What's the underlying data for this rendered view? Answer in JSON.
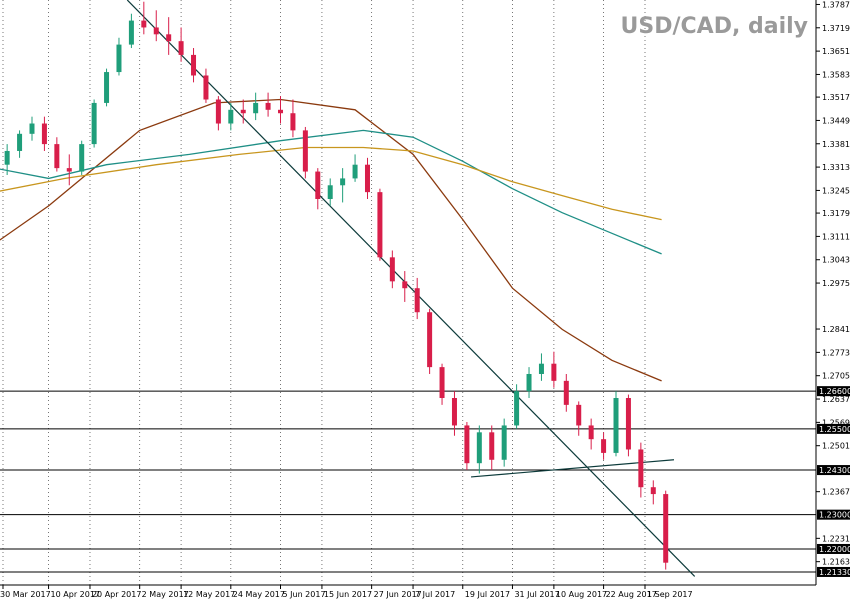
{
  "chart_data": {
    "type": "candlestick",
    "title": "USD/CAD, daily",
    "ylim": [
      1.2095,
      1.38
    ],
    "y_ticks": [
      "1.37870",
      "1.37190",
      "1.36510",
      "1.35830",
      "1.35170",
      "1.34490",
      "1.33810",
      "1.33130",
      "1.32450",
      "1.31790",
      "1.31110",
      "1.30430",
      "1.29750",
      "1.28410",
      "1.27730",
      "1.27050",
      "1.26370",
      "1.25690",
      "1.25010",
      "1.23670",
      "1.22310",
      "1.21630"
    ],
    "x_labels": [
      "30 Mar 2017",
      "10 Apr 2017",
      "20 Apr 2017",
      "2 May 2017",
      "12 May 2017",
      "24 May 2017",
      "5 Jun 2017",
      "15 Jun 2017",
      "27 Jun 2017",
      "7 Jul 2017",
      "19 Jul 2017",
      "31 Jul 2017",
      "10 Aug 2017",
      "22 Aug 2017",
      "1 Sep 2017"
    ],
    "horizontal_levels": [
      {
        "value": 1.266,
        "label": "1.26600"
      },
      {
        "value": 1.255,
        "label": "1.25500"
      },
      {
        "value": 1.243,
        "label": "1.24300"
      },
      {
        "value": 1.23,
        "label": "1.23000"
      },
      {
        "value": 1.22,
        "label": "1.22000"
      },
      {
        "value": 1.2133,
        "label": "1.21330"
      }
    ],
    "trendlines": [
      {
        "name": "descending",
        "from": [
          "29 Apr 2017",
          1.38
        ],
        "to": [
          "13 Sep 2017",
          1.212
        ]
      },
      {
        "name": "support",
        "from": [
          "21 Jul 2017",
          1.241
        ],
        "to": [
          "8 Sep 2017",
          1.246
        ]
      }
    ],
    "moving_averages": [
      {
        "color": "#8b3a0f",
        "points": [
          [
            "28 Mar 2017",
            1.309
          ],
          [
            "10 Apr 2017",
            1.32
          ],
          [
            "2 May 2017",
            1.342
          ],
          [
            "20 May 2017",
            1.35
          ],
          [
            "5 Jun 2017",
            1.351
          ],
          [
            "23 Jun 2017",
            1.348
          ],
          [
            "7 Jul 2017",
            1.335
          ],
          [
            "19 Jul 2017",
            1.316
          ],
          [
            "31 Jul 2017",
            1.296
          ],
          [
            "12 Aug 2017",
            1.284
          ],
          [
            "24 Aug 2017",
            1.275
          ],
          [
            "5 Sep 2017",
            1.269
          ]
        ]
      },
      {
        "color": "#1f8f86",
        "points": [
          [
            "28 Mar 2017",
            1.331
          ],
          [
            "10 Apr 2017",
            1.328
          ],
          [
            "24 Apr 2017",
            1.332
          ],
          [
            "14 May 2017",
            1.335
          ],
          [
            "5 Jun 2017",
            1.339
          ],
          [
            "25 Jun 2017",
            1.342
          ],
          [
            "7 Jul 2017",
            1.34
          ],
          [
            "19 Jul 2017",
            1.333
          ],
          [
            "31 Jul 2017",
            1.325
          ],
          [
            "12 Aug 2017",
            1.318
          ],
          [
            "24 Aug 2017",
            1.312
          ],
          [
            "5 Sep 2017",
            1.306
          ]
        ]
      },
      {
        "color": "#c8961e",
        "points": [
          [
            "28 Mar 2017",
            1.324
          ],
          [
            "14 Apr 2017",
            1.328
          ],
          [
            "6 May 2017",
            1.332
          ],
          [
            "26 May 2017",
            1.335
          ],
          [
            "11 Jun 2017",
            1.337
          ],
          [
            "25 Jun 2017",
            1.337
          ],
          [
            "7 Jul 2017",
            1.336
          ],
          [
            "19 Jul 2017",
            1.332
          ],
          [
            "31 Jul 2017",
            1.327
          ],
          [
            "12 Aug 2017",
            1.323
          ],
          [
            "24 Aug 2017",
            1.319
          ],
          [
            "5 Sep 2017",
            1.316
          ]
        ]
      }
    ],
    "candles": [
      {
        "date": "28 Mar 2017",
        "open": 1.334,
        "high": 1.338,
        "low": 1.33,
        "close": 1.332
      },
      {
        "date": "31 Mar 2017",
        "open": 1.332,
        "high": 1.338,
        "low": 1.329,
        "close": 1.336
      },
      {
        "date": "3 Apr 2017",
        "open": 1.336,
        "high": 1.342,
        "low": 1.334,
        "close": 1.341
      },
      {
        "date": "6 Apr 2017",
        "open": 1.341,
        "high": 1.346,
        "low": 1.339,
        "close": 1.344
      },
      {
        "date": "9 Apr 2017",
        "open": 1.344,
        "high": 1.346,
        "low": 1.336,
        "close": 1.338
      },
      {
        "date": "12 Apr 2017",
        "open": 1.338,
        "high": 1.34,
        "low": 1.33,
        "close": 1.331
      },
      {
        "date": "15 Apr 2017",
        "open": 1.331,
        "high": 1.335,
        "low": 1.326,
        "close": 1.33
      },
      {
        "date": "18 Apr 2017",
        "open": 1.33,
        "high": 1.339,
        "low": 1.329,
        "close": 1.338
      },
      {
        "date": "21 Apr 2017",
        "open": 1.338,
        "high": 1.351,
        "low": 1.337,
        "close": 1.35
      },
      {
        "date": "24 Apr 2017",
        "open": 1.35,
        "high": 1.36,
        "low": 1.349,
        "close": 1.359
      },
      {
        "date": "27 Apr 2017",
        "open": 1.359,
        "high": 1.369,
        "low": 1.358,
        "close": 1.367
      },
      {
        "date": "30 Apr 2017",
        "open": 1.367,
        "high": 1.376,
        "low": 1.366,
        "close": 1.374
      },
      {
        "date": "3 May 2017",
        "open": 1.374,
        "high": 1.3795,
        "low": 1.37,
        "close": 1.372
      },
      {
        "date": "6 May 2017",
        "open": 1.372,
        "high": 1.377,
        "low": 1.368,
        "close": 1.37
      },
      {
        "date": "9 May 2017",
        "open": 1.37,
        "high": 1.375,
        "low": 1.364,
        "close": 1.368
      },
      {
        "date": "12 May 2017",
        "open": 1.368,
        "high": 1.372,
        "low": 1.362,
        "close": 1.364
      },
      {
        "date": "15 May 2017",
        "open": 1.364,
        "high": 1.366,
        "low": 1.356,
        "close": 1.358
      },
      {
        "date": "18 May 2017",
        "open": 1.358,
        "high": 1.36,
        "low": 1.35,
        "close": 1.351
      },
      {
        "date": "21 May 2017",
        "open": 1.351,
        "high": 1.352,
        "low": 1.342,
        "close": 1.344
      },
      {
        "date": "24 May 2017",
        "open": 1.344,
        "high": 1.35,
        "low": 1.342,
        "close": 1.348
      },
      {
        "date": "27 May 2017",
        "open": 1.348,
        "high": 1.351,
        "low": 1.344,
        "close": 1.347
      },
      {
        "date": "30 May 2017",
        "open": 1.347,
        "high": 1.353,
        "low": 1.345,
        "close": 1.35
      },
      {
        "date": "2 Jun 2017",
        "open": 1.35,
        "high": 1.353,
        "low": 1.346,
        "close": 1.348
      },
      {
        "date": "5 Jun 2017",
        "open": 1.348,
        "high": 1.352,
        "low": 1.344,
        "close": 1.347
      },
      {
        "date": "8 Jun 2017",
        "open": 1.347,
        "high": 1.351,
        "low": 1.34,
        "close": 1.342
      },
      {
        "date": "11 Jun 2017",
        "open": 1.342,
        "high": 1.343,
        "low": 1.328,
        "close": 1.33
      },
      {
        "date": "14 Jun 2017",
        "open": 1.33,
        "high": 1.331,
        "low": 1.319,
        "close": 1.322
      },
      {
        "date": "17 Jun 2017",
        "open": 1.322,
        "high": 1.328,
        "low": 1.32,
        "close": 1.326
      },
      {
        "date": "20 Jun 2017",
        "open": 1.326,
        "high": 1.331,
        "low": 1.321,
        "close": 1.328
      },
      {
        "date": "23 Jun 2017",
        "open": 1.328,
        "high": 1.335,
        "low": 1.327,
        "close": 1.332
      },
      {
        "date": "26 Jun 2017",
        "open": 1.332,
        "high": 1.334,
        "low": 1.322,
        "close": 1.324
      },
      {
        "date": "29 Jun 2017",
        "open": 1.324,
        "high": 1.325,
        "low": 1.304,
        "close": 1.305
      },
      {
        "date": "2 Jul 2017",
        "open": 1.305,
        "high": 1.307,
        "low": 1.296,
        "close": 1.298
      },
      {
        "date": "5 Jul 2017",
        "open": 1.298,
        "high": 1.301,
        "low": 1.292,
        "close": 1.296
      },
      {
        "date": "8 Jul 2017",
        "open": 1.296,
        "high": 1.299,
        "low": 1.287,
        "close": 1.289
      },
      {
        "date": "11 Jul 2017",
        "open": 1.289,
        "high": 1.29,
        "low": 1.271,
        "close": 1.273
      },
      {
        "date": "14 Jul 2017",
        "open": 1.273,
        "high": 1.274,
        "low": 1.262,
        "close": 1.264
      },
      {
        "date": "17 Jul 2017",
        "open": 1.264,
        "high": 1.266,
        "low": 1.253,
        "close": 1.256
      },
      {
        "date": "20 Jul 2017",
        "open": 1.256,
        "high": 1.257,
        "low": 1.243,
        "close": 1.245
      },
      {
        "date": "23 Jul 2017",
        "open": 1.245,
        "high": 1.256,
        "low": 1.242,
        "close": 1.254
      },
      {
        "date": "26 Jul 2017",
        "open": 1.254,
        "high": 1.256,
        "low": 1.243,
        "close": 1.246
      },
      {
        "date": "29 Jul 2017",
        "open": 1.246,
        "high": 1.258,
        "low": 1.244,
        "close": 1.256
      },
      {
        "date": "1 Aug 2017",
        "open": 1.256,
        "high": 1.268,
        "low": 1.255,
        "close": 1.266
      },
      {
        "date": "4 Aug 2017",
        "open": 1.266,
        "high": 1.273,
        "low": 1.264,
        "close": 1.271
      },
      {
        "date": "7 Aug 2017",
        "open": 1.271,
        "high": 1.277,
        "low": 1.269,
        "close": 1.274
      },
      {
        "date": "10 Aug 2017",
        "open": 1.274,
        "high": 1.2775,
        "low": 1.267,
        "close": 1.269
      },
      {
        "date": "13 Aug 2017",
        "open": 1.269,
        "high": 1.271,
        "low": 1.26,
        "close": 1.262
      },
      {
        "date": "16 Aug 2017",
        "open": 1.262,
        "high": 1.263,
        "low": 1.253,
        "close": 1.256
      },
      {
        "date": "19 Aug 2017",
        "open": 1.256,
        "high": 1.258,
        "low": 1.249,
        "close": 1.252
      },
      {
        "date": "22 Aug 2017",
        "open": 1.252,
        "high": 1.254,
        "low": 1.246,
        "close": 1.248
      },
      {
        "date": "25 Aug 2017",
        "open": 1.248,
        "high": 1.266,
        "low": 1.247,
        "close": 1.264
      },
      {
        "date": "28 Aug 2017",
        "open": 1.264,
        "high": 1.265,
        "low": 1.247,
        "close": 1.249
      },
      {
        "date": "31 Aug 2017",
        "open": 1.249,
        "high": 1.251,
        "low": 1.235,
        "close": 1.238
      },
      {
        "date": "3 Sep 2017",
        "open": 1.238,
        "high": 1.24,
        "low": 1.233,
        "close": 1.236
      },
      {
        "date": "6 Sep 2017",
        "open": 1.236,
        "high": 1.237,
        "low": 1.214,
        "close": 1.216
      }
    ]
  }
}
